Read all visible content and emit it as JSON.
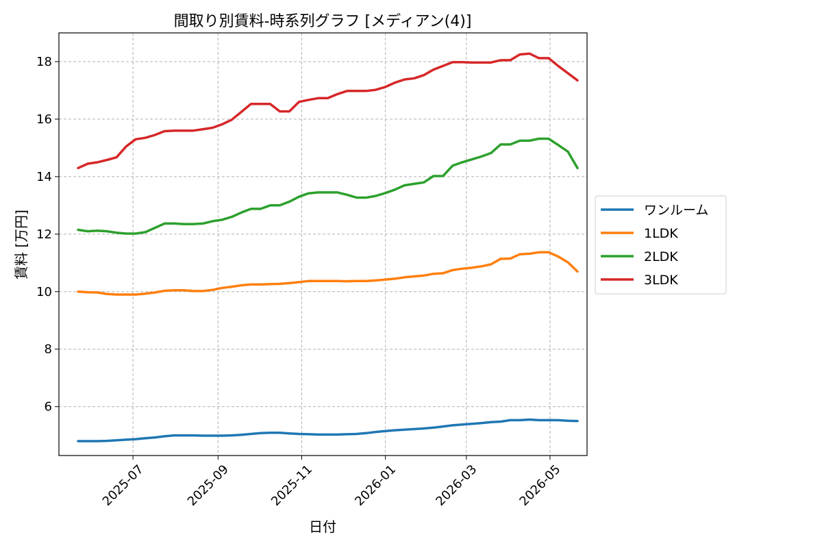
{
  "chart_data": {
    "type": "line",
    "title": "間取り別賃料-時系列グラフ [メディアン(4)]",
    "xlabel": "日付",
    "ylabel": "賃料 [万円]",
    "xlim": [
      "2025-05-08",
      "2026-05-28"
    ],
    "ylim": [
      4.3,
      19.0
    ],
    "grid": true,
    "legend_position": "center-right",
    "x_ticks": [
      "2025-07",
      "2025-09",
      "2025-11",
      "2026-01",
      "2026-03",
      "2026-05"
    ],
    "y_ticks": [
      6,
      8,
      10,
      12,
      14,
      16,
      18
    ],
    "x": [
      "2025-05-22",
      "2025-05-29",
      "2025-06-05",
      "2025-06-12",
      "2025-06-19",
      "2025-06-26",
      "2025-07-03",
      "2025-07-10",
      "2025-07-17",
      "2025-07-24",
      "2025-07-31",
      "2025-08-07",
      "2025-08-14",
      "2025-08-21",
      "2025-08-28",
      "2025-09-04",
      "2025-09-11",
      "2025-09-18",
      "2025-09-25",
      "2025-10-02",
      "2025-10-09",
      "2025-10-16",
      "2025-10-23",
      "2025-10-30",
      "2025-11-06",
      "2025-11-13",
      "2025-11-20",
      "2025-11-27",
      "2025-12-04",
      "2025-12-11",
      "2025-12-18",
      "2025-12-25",
      "2026-01-01",
      "2026-01-08",
      "2026-01-15",
      "2026-01-22",
      "2026-01-29",
      "2026-02-05",
      "2026-02-12",
      "2026-02-19",
      "2026-02-26",
      "2026-03-05",
      "2026-03-12",
      "2026-03-19",
      "2026-03-26",
      "2026-04-02",
      "2026-04-09",
      "2026-04-16",
      "2026-04-23",
      "2026-04-30",
      "2026-05-07",
      "2026-05-14",
      "2026-05-21"
    ],
    "series": [
      {
        "name": "ワンルーム",
        "color": "#1f77b4",
        "values": [
          4.8,
          4.8,
          4.8,
          4.81,
          4.83,
          4.85,
          4.87,
          4.9,
          4.93,
          4.97,
          5.0,
          5.0,
          5.0,
          4.99,
          4.99,
          4.99,
          5.0,
          5.02,
          5.05,
          5.08,
          5.09,
          5.09,
          5.07,
          5.05,
          5.04,
          5.03,
          5.03,
          5.03,
          5.04,
          5.05,
          5.08,
          5.12,
          5.15,
          5.18,
          5.2,
          5.22,
          5.24,
          5.27,
          5.31,
          5.35,
          5.38,
          5.4,
          5.43,
          5.46,
          5.48,
          5.53,
          5.53,
          5.55,
          5.53,
          5.53,
          5.53,
          5.51,
          5.5
        ]
      },
      {
        "name": "1LDK",
        "color": "#ff7f0e",
        "values": [
          10.0,
          9.98,
          9.97,
          9.92,
          9.9,
          9.9,
          9.9,
          9.93,
          9.97,
          10.03,
          10.05,
          10.05,
          10.02,
          10.02,
          10.06,
          10.13,
          10.17,
          10.22,
          10.25,
          10.25,
          10.26,
          10.27,
          10.3,
          10.33,
          10.37,
          10.37,
          10.37,
          10.37,
          10.36,
          10.37,
          10.37,
          10.39,
          10.42,
          10.45,
          10.5,
          10.53,
          10.56,
          10.62,
          10.64,
          10.75,
          10.8,
          10.83,
          10.88,
          10.95,
          11.14,
          11.15,
          11.3,
          11.32,
          11.37,
          11.37,
          11.22,
          11.02,
          10.7
        ]
      },
      {
        "name": "2LDK",
        "color": "#2ca02c",
        "values": [
          12.15,
          12.1,
          12.12,
          12.1,
          12.05,
          12.02,
          12.02,
          12.07,
          12.22,
          12.37,
          12.37,
          12.35,
          12.35,
          12.37,
          12.45,
          12.5,
          12.6,
          12.75,
          12.88,
          12.88,
          13.0,
          13.0,
          13.13,
          13.3,
          13.42,
          13.45,
          13.45,
          13.45,
          13.37,
          13.27,
          13.27,
          13.33,
          13.43,
          13.55,
          13.7,
          13.75,
          13.8,
          14.02,
          14.02,
          14.38,
          14.5,
          14.6,
          14.7,
          14.82,
          15.12,
          15.12,
          15.25,
          15.25,
          15.32,
          15.32,
          15.1,
          14.87,
          14.3
        ]
      },
      {
        "name": "3LDK",
        "color": "#d62728",
        "values": [
          14.3,
          14.45,
          14.5,
          14.58,
          14.67,
          15.05,
          15.3,
          15.35,
          15.45,
          15.58,
          15.6,
          15.6,
          15.6,
          15.65,
          15.7,
          15.82,
          15.98,
          16.25,
          16.53,
          16.53,
          16.53,
          16.27,
          16.27,
          16.6,
          16.67,
          16.73,
          16.73,
          16.87,
          16.98,
          16.98,
          16.98,
          17.02,
          17.12,
          17.27,
          17.38,
          17.42,
          17.53,
          17.72,
          17.85,
          17.98,
          17.98,
          17.97,
          17.97,
          17.97,
          18.05,
          18.05,
          18.25,
          18.28,
          18.12,
          18.12,
          17.85,
          17.6,
          17.35
        ]
      }
    ]
  }
}
